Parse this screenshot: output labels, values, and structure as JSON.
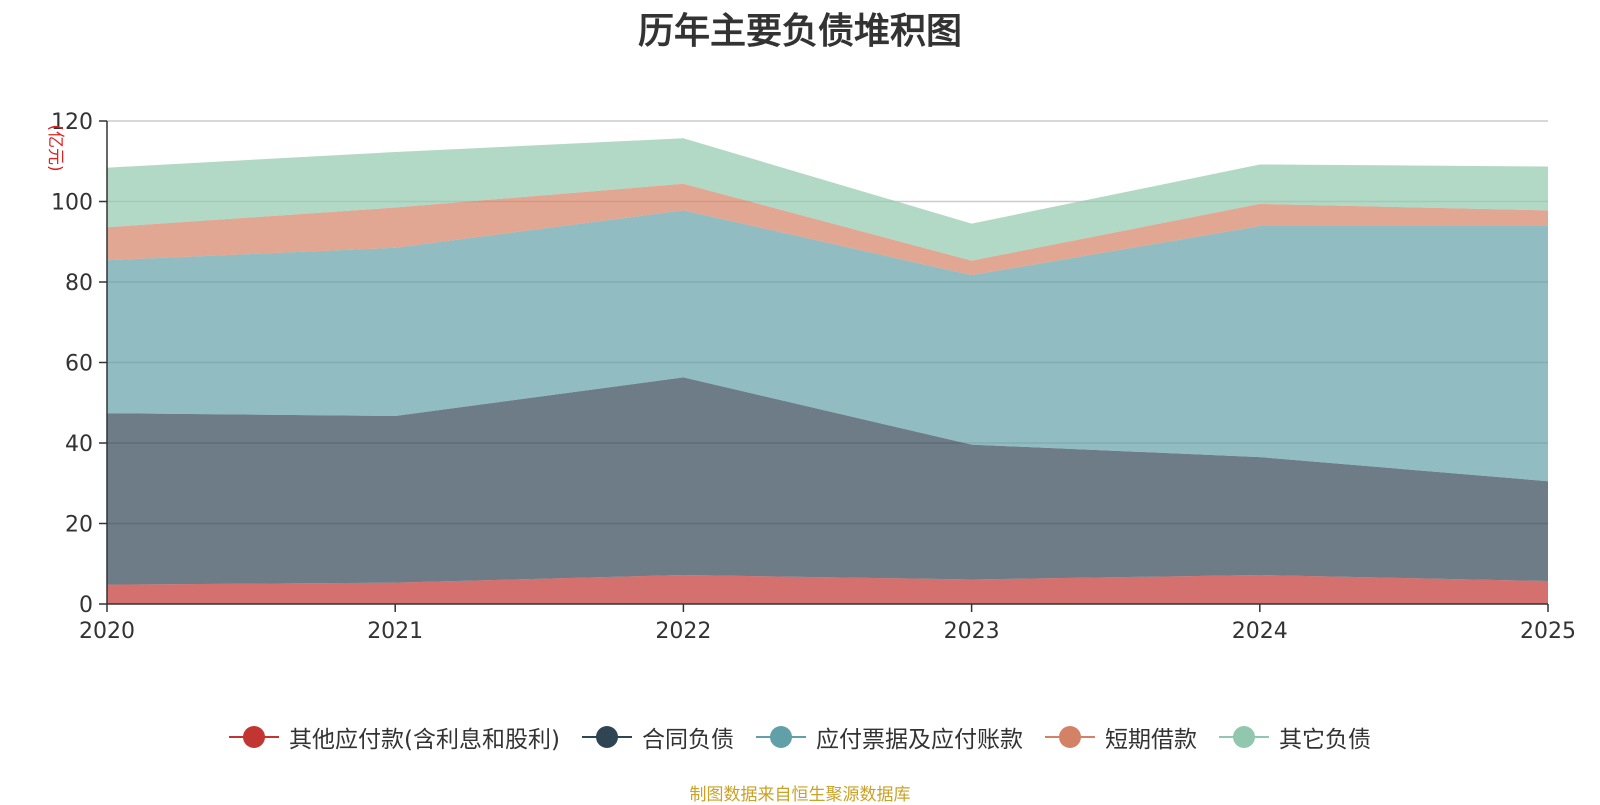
{
  "chart_data": {
    "type": "area",
    "stacked": true,
    "title": "历年主要负债堆积图",
    "ylabel": "(亿元)",
    "xlabel": "",
    "categories": [
      "2020",
      "2021",
      "2022",
      "2023",
      "2024",
      "2025"
    ],
    "ylim": [
      0,
      120
    ],
    "yticks": [
      0,
      20,
      40,
      60,
      80,
      100,
      120
    ],
    "grid": true,
    "legend_position": "bottom",
    "series": [
      {
        "name": "其他应付款(含利息和股利)",
        "color": "#c23531",
        "values": [
          4.8,
          5.3,
          7.2,
          6.1,
          7.2,
          5.7
        ]
      },
      {
        "name": "合同负债",
        "color": "#2f4554",
        "values": [
          42.6,
          41.4,
          49.1,
          33.5,
          29.3,
          24.8
        ]
      },
      {
        "name": "应付票据及应付账款",
        "color": "#61a0a8",
        "values": [
          38.0,
          41.8,
          41.5,
          42.1,
          57.4,
          63.4
        ]
      },
      {
        "name": "短期借款",
        "color": "#d48265",
        "values": [
          8.2,
          10.0,
          6.6,
          3.6,
          5.5,
          3.9
        ]
      },
      {
        "name": "其它负债",
        "color": "#91c7ae",
        "values": [
          14.8,
          13.8,
          11.3,
          9.2,
          9.8,
          10.9
        ]
      }
    ]
  },
  "footer": {
    "source_note": "制图数据来自恒生聚源数据库"
  }
}
